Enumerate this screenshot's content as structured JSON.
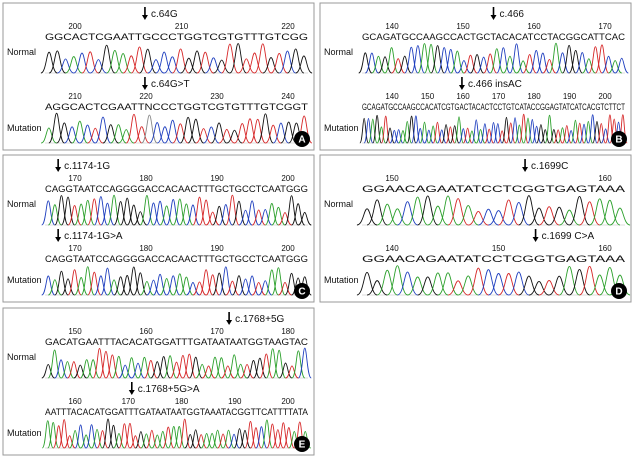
{
  "panels": [
    {
      "letter": "A",
      "rows": [
        {
          "label": "Normal",
          "annotation": "c.64G",
          "positions": [
            200,
            210,
            220
          ],
          "sequence": "GGCACTCGAATTGCCCTGGTCGTGTTTGTCGG"
        },
        {
          "label": "Mutation",
          "annotation": "c.64G>T",
          "positions": [
            210,
            220,
            230,
            240
          ],
          "sequence": "AGGCACTCGAATTNCCCTGGTCGTGTTTGTCGGT"
        }
      ]
    },
    {
      "letter": "B",
      "rows": [
        {
          "label": "Normal",
          "annotation": "c.466",
          "positions": [
            140,
            150,
            160,
            170
          ],
          "sequence": "GCAGATGCCAAGCCACTGCTACACATCCTACGGCATTCAC"
        },
        {
          "label": "Mutation",
          "annotation": "c.466 insAC",
          "positions": [
            140,
            150,
            160,
            170,
            180,
            190,
            200
          ],
          "sequence": "GCAGATGCCAAGCCACATCGTGACTACACTCCTGTCATACCGGAGTATCATCACGTCTTCT"
        }
      ]
    },
    {
      "letter": "C",
      "rows": [
        {
          "label": "Normal",
          "annotation": "c.1174-1G",
          "positions": [
            170,
            180,
            190,
            200
          ],
          "sequence": "CAGGTAATCCAGGGGACCACAACTTTGCTGCCTCAATGGG"
        },
        {
          "label": "Mutation",
          "annotation": "c.1174-1G>A",
          "positions": [
            170,
            180,
            190,
            200
          ],
          "sequence": "CAGGTAATCCAGGGGACCACAACTTTGCTGCCTCAATGGG"
        }
      ]
    },
    {
      "letter": "D",
      "rows": [
        {
          "label": "Normal",
          "annotation": "c.1699C",
          "positions": [
            150,
            160
          ],
          "sequence": "GGAACAGAATATCCTCGGTGAGTAAA"
        },
        {
          "label": "Mutation",
          "annotation": "c.1699 C>A",
          "positions": [
            140,
            150,
            160
          ],
          "sequence": "GGAACAGAATATCCTCGGTGAGTAAA"
        }
      ]
    },
    {
      "letter": "E",
      "rows": [
        {
          "label": "Normal",
          "annotation": "c.1768+5G",
          "positions": [
            150,
            160,
            170,
            180
          ],
          "sequence": "GACATGAATTTACACATGGATTTGATAATAATGGTAAGTAC"
        },
        {
          "label": "Mutation",
          "annotation": "c.1768+5G>A",
          "positions": [
            160,
            170,
            180,
            190,
            200
          ],
          "sequence": "AATTTACACATGGATTTGATAATAATGGTAAATACGGTTCATTTTATA"
        }
      ]
    }
  ]
}
